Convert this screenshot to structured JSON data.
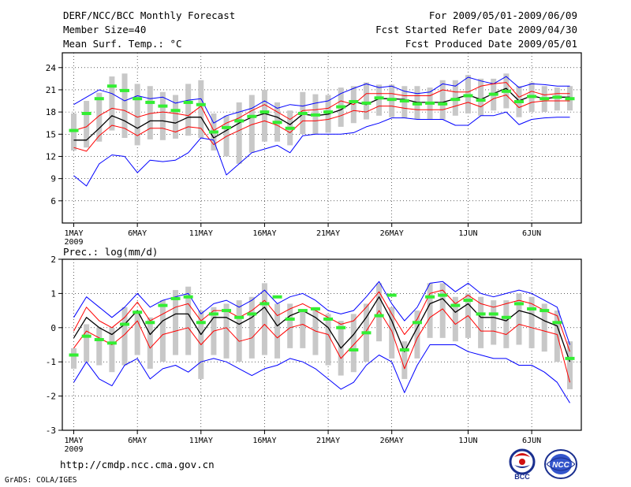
{
  "header": {
    "title": "DERF/NCC/BCC Monthly Forecast",
    "member_size": "Member Size=40",
    "variable": "Mean Surf. Temp.: °C",
    "period": "For 2009/05/01-2009/06/09",
    "started": "Fcst Started Refer Date 2009/04/30",
    "produced": "Fcst Produced Date 2009/05/01"
  },
  "footer": {
    "url": "http://cmdp.ncc.cma.gov.cn",
    "credit": "GrADS: COLA/IGES",
    "logo_left_text": "BCC",
    "logo_right_text": "NCC"
  },
  "colors": {
    "envelope": "#0000ff",
    "spread": "#ff0000",
    "mean": "#000000",
    "median": "#00c000",
    "box": "#c8c8c8",
    "marker": "#33ee33"
  },
  "chart_data": [
    {
      "type": "line",
      "title": "Mean Surf. Temp.: °C",
      "unit": "°C",
      "ylim": [
        3,
        26
      ],
      "yticks": [
        6,
        9,
        12,
        15,
        18,
        21,
        24
      ],
      "ytick_labels": [
        "6",
        "9",
        "12",
        "15",
        "18",
        "21",
        "24"
      ],
      "xtick_days": [
        1,
        6,
        11,
        16,
        21,
        26,
        32,
        37
      ],
      "xtick_labels": [
        "1MAY",
        "6MAY",
        "11MAY",
        "16MAY",
        "21MAY",
        "26MAY",
        "1JUN",
        "6JUN"
      ],
      "year_label": "2009",
      "grid": true,
      "x_days": [
        1,
        2,
        3,
        4,
        5,
        6,
        7,
        8,
        9,
        10,
        11,
        12,
        13,
        14,
        15,
        16,
        17,
        18,
        19,
        20,
        21,
        22,
        23,
        24,
        25,
        26,
        27,
        28,
        29,
        30,
        31,
        32,
        33,
        34,
        35,
        36,
        37,
        38,
        39,
        40
      ],
      "series": [
        {
          "name": "Ensemble maximum",
          "values": [
            19,
            20,
            21,
            20.5,
            19.5,
            20.2,
            19.8,
            20,
            19.2,
            19.6,
            19.8,
            16.5,
            17.5,
            18,
            18.5,
            19.5,
            18.5,
            19,
            18.8,
            19.2,
            19.5,
            20.5,
            21.2,
            21.8,
            21.3,
            21.5,
            20.8,
            20.5,
            20.7,
            21.8,
            21.5,
            22.7,
            22.2,
            21.8,
            22.8,
            21.3,
            21.8,
            21.7,
            21.5,
            21.5
          ]
        },
        {
          "name": "Upper spread",
          "values": [
            15.5,
            16,
            17.5,
            18.5,
            18.2,
            17.3,
            17.8,
            18,
            17.8,
            17.5,
            18.8,
            15.5,
            16.5,
            17.2,
            18.2,
            19,
            18,
            17,
            18.2,
            18.3,
            18.5,
            19.5,
            19,
            20.5,
            20.5,
            20.5,
            20.2,
            20.2,
            20.2,
            21,
            20.7,
            20.7,
            21.5,
            21.8,
            22,
            20,
            20.8,
            20.3,
            20.5,
            20.5
          ]
        },
        {
          "name": "Ensemble mean",
          "values": [
            14.2,
            14.2,
            15.8,
            17.5,
            16.8,
            15.8,
            16.8,
            16.8,
            16.5,
            17.3,
            17.3,
            14.5,
            15.5,
            16.5,
            17.3,
            17.8,
            17.3,
            16.3,
            17.7,
            17.5,
            17.7,
            18.3,
            19.4,
            19,
            19.8,
            19.8,
            19.7,
            19.3,
            19.3,
            19.3,
            19.8,
            20.3,
            19.7,
            20.5,
            21.2,
            19.5,
            20.2,
            19.8,
            20,
            20
          ]
        },
        {
          "name": "Lower spread",
          "values": [
            13.2,
            12.7,
            14.8,
            16.2,
            15.8,
            14.8,
            15.8,
            15.8,
            15.3,
            16,
            15.8,
            13.6,
            14.7,
            15.5,
            16.3,
            16.8,
            16.2,
            15.2,
            16.8,
            16.8,
            17,
            17.5,
            18.2,
            18,
            18.8,
            18.8,
            18.5,
            18.3,
            18.3,
            18.3,
            18.8,
            19.3,
            18.7,
            19.8,
            20.3,
            18.6,
            19.3,
            19.5,
            19.5,
            19.5
          ]
        },
        {
          "name": "Ensemble minimum",
          "values": [
            9.4,
            8,
            11,
            12.2,
            12,
            9.8,
            11.5,
            11.3,
            11.5,
            12.5,
            14.5,
            14.2,
            9.5,
            11,
            12.5,
            13,
            13.5,
            12.5,
            14.8,
            15,
            15,
            15,
            15.2,
            16,
            16.5,
            17.2,
            17.2,
            17,
            17,
            17,
            16.2,
            16.2,
            17.5,
            17.5,
            18,
            16.3,
            17,
            17.2,
            17.3,
            17.3
          ]
        }
      ],
      "boxes": [
        {
          "low": [
            12.8,
            13.2,
            14,
            15.5,
            14.5,
            13.5,
            14.3,
            14.2,
            14.4,
            14.8,
            14.5,
            12.8,
            12,
            11,
            12.5,
            14,
            14,
            13.5,
            15,
            15,
            15.2,
            16,
            16.5,
            17,
            17.5,
            17.3,
            17.2,
            17,
            17,
            17,
            17.5,
            17.8,
            17.5,
            18.2,
            18.5,
            17.3,
            18,
            18,
            18.2,
            18.2
          ]
        },
        {
          "high": [
            17.8,
            19.5,
            20.6,
            22.8,
            23.2,
            21.8,
            21.5,
            20.7,
            20.3,
            21.8,
            22.3,
            17.8,
            17.5,
            19.3,
            20.3,
            21,
            19.3,
            18.2,
            20.7,
            20.4,
            20.3,
            21.3,
            21.5,
            22,
            21.7,
            21.7,
            21.5,
            21.5,
            21.3,
            22.3,
            22.3,
            23,
            22.5,
            22.5,
            23.2,
            21.5,
            22,
            21.5,
            21.3,
            21.5
          ]
        }
      ],
      "markers_label": "Ensemble median",
      "markers": [
        15.5,
        17.8,
        19.8,
        21.5,
        20.9,
        19.8,
        19.3,
        18.8,
        18.2,
        19.3,
        19,
        15.3,
        15.9,
        16.8,
        17.4,
        18,
        16.6,
        15.8,
        17.8,
        17.6,
        18,
        18.7,
        19.4,
        19.2,
        19.9,
        19.7,
        19.5,
        19.1,
        19.2,
        19.1,
        19.7,
        20.2,
        19.6,
        20.4,
        20.8,
        19.4,
        20.1,
        19.8,
        20,
        19.8
      ]
    },
    {
      "type": "line",
      "title": "Prec.: log(mm/d)",
      "unit": "log(mm/d)",
      "ylim": [
        -3,
        2
      ],
      "yticks": [
        -3,
        -2,
        -1,
        0,
        1,
        2
      ],
      "ytick_labels": [
        "-3",
        "-2",
        "-1",
        "0",
        "1",
        "2"
      ],
      "xtick_days": [
        1,
        6,
        11,
        16,
        21,
        26,
        32,
        37
      ],
      "xtick_labels": [
        "1MAY",
        "6MAY",
        "11MAY",
        "16MAY",
        "21MAY",
        "26MAY",
        "1JUN",
        "6JUN"
      ],
      "year_label": "2009",
      "grid": true,
      "x_days": [
        1,
        2,
        3,
        4,
        5,
        6,
        7,
        8,
        9,
        10,
        11,
        12,
        13,
        14,
        15,
        16,
        17,
        18,
        19,
        20,
        21,
        22,
        23,
        24,
        25,
        26,
        27,
        28,
        29,
        30,
        31,
        32,
        33,
        34,
        35,
        36,
        37,
        38,
        39,
        40
      ],
      "series": [
        {
          "name": "Ensemble maximum",
          "values": [
            0.3,
            0.9,
            0.6,
            0.3,
            0.6,
            1,
            0.6,
            0.8,
            0.9,
            1,
            0.4,
            0.7,
            0.8,
            0.6,
            0.8,
            1.1,
            0.7,
            0.9,
            1,
            0.8,
            0.5,
            0.4,
            0.5,
            0.9,
            1.35,
            0.7,
            0.2,
            0.6,
            1.3,
            1.35,
            1.05,
            1.3,
            1,
            0.9,
            1,
            1.1,
            1,
            0.8,
            0.6,
            -0.5
          ]
        },
        {
          "name": "Upper spread",
          "values": [
            -0.1,
            0.6,
            0.2,
            0,
            0.3,
            0.75,
            0.2,
            0.4,
            0.6,
            0.7,
            0.2,
            0.5,
            0.5,
            0.3,
            0.5,
            0.8,
            0.35,
            0.55,
            0.7,
            0.5,
            0.3,
            0.1,
            0.2,
            0.6,
            1.05,
            0.4,
            -0.2,
            0.25,
            1,
            1.1,
            0.7,
            0.95,
            0.7,
            0.6,
            0.7,
            0.8,
            0.7,
            0.5,
            0.35,
            -0.7
          ]
        },
        {
          "name": "Ensemble mean",
          "values": [
            -0.3,
            0.3,
            0,
            -0.2,
            0.1,
            0.5,
            -0.2,
            0.2,
            0.4,
            0.4,
            -0.2,
            0.3,
            0.3,
            0.1,
            0.3,
            0.6,
            0.05,
            0.35,
            0.5,
            0.3,
            0,
            -0.6,
            -0.2,
            0.3,
            0.9,
            0.2,
            -0.7,
            0,
            0.7,
            0.85,
            0.45,
            0.7,
            0.3,
            0.3,
            0.2,
            0.5,
            0.4,
            0.2,
            0.05,
            -1
          ]
        },
        {
          "name": "Lower spread",
          "values": [
            -0.6,
            -0.1,
            -0.3,
            -0.5,
            -0.2,
            0.2,
            -0.6,
            -0.2,
            -0.1,
            0,
            -0.5,
            -0.1,
            0,
            -0.4,
            -0.3,
            0.1,
            -0.3,
            0,
            0.1,
            -0.1,
            -0.2,
            -0.9,
            -0.5,
            -0.1,
            0.5,
            -0.1,
            -1.2,
            -0.3,
            0.3,
            0.55,
            0.1,
            0.35,
            -0.1,
            -0.1,
            -0.2,
            0.1,
            0,
            -0.1,
            -0.2,
            -1.6
          ]
        },
        {
          "name": "Ensemble minimum",
          "values": [
            -1.6,
            -1,
            -1.5,
            -1.7,
            -1.1,
            -0.9,
            -1.5,
            -1.2,
            -1.1,
            -1.3,
            -1,
            -0.9,
            -1,
            -1.2,
            -1.4,
            -1.2,
            -1.1,
            -0.9,
            -1,
            -1.2,
            -1.5,
            -1.8,
            -1.6,
            -1.1,
            -0.8,
            -1,
            -1.9,
            -1.1,
            -0.5,
            -0.5,
            -0.5,
            -0.7,
            -0.8,
            -0.9,
            -0.9,
            -1.1,
            -1.1,
            -1.3,
            -1.6,
            -2.2
          ]
        }
      ],
      "boxes": [
        {
          "low": [
            -1.2,
            -1,
            -1.1,
            -1.3,
            -1.1,
            -0.8,
            -1.2,
            -1,
            -0.8,
            -0.8,
            -1.5,
            -0.8,
            -0.9,
            -1,
            -0.9,
            -0.8,
            -0.9,
            -0.6,
            -0.6,
            -0.8,
            -1.1,
            -1.4,
            -1.3,
            -1,
            -0.4,
            -0.9,
            -1.5,
            -0.9,
            -0.3,
            -0.3,
            -0.4,
            -0.3,
            -0.6,
            -0.5,
            -0.6,
            -0.5,
            -0.6,
            -0.7,
            -1,
            -1.8
          ]
        },
        {
          "high": [
            -0.6,
            0.1,
            0,
            0,
            0.6,
            0.5,
            0.3,
            0.8,
            1.1,
            1.2,
            0.5,
            0.6,
            0.7,
            0.8,
            0.9,
            1.3,
            0.7,
            0.7,
            0.5,
            0.6,
            0.4,
            0.2,
            0.4,
            0.7,
            1.3,
            0.6,
            -0.4,
            0.5,
            1.3,
            1.3,
            0.9,
            1,
            0.9,
            0.8,
            0.8,
            1,
            0.9,
            0.7,
            0.5,
            -0.4
          ]
        }
      ],
      "markers_label": "Ensemble median",
      "markers": [
        -0.8,
        -0.25,
        -0.35,
        -0.45,
        0.1,
        0.45,
        0.15,
        0.65,
        0.85,
        0.9,
        0.15,
        0.4,
        0.5,
        0.3,
        0.4,
        0.7,
        0.9,
        0.25,
        0.5,
        0.55,
        0.25,
        0,
        -0.65,
        -0.15,
        0.35,
        0.95,
        -0.65,
        0.15,
        0.9,
        0.95,
        0.65,
        0.8,
        0.4,
        0.4,
        0.3,
        0.7,
        0.55,
        0.5,
        0.15,
        -0.9
      ]
    }
  ]
}
